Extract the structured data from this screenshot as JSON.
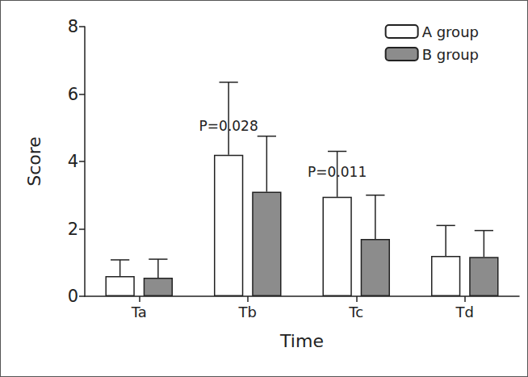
{
  "chart_data": {
    "type": "bar",
    "x_label": "Time",
    "y_label": "Score",
    "categories": [
      "Ta",
      "Tb",
      "Tc",
      "Td"
    ],
    "series": [
      {
        "name": "A group",
        "color": "#ffffff",
        "values": [
          0.6,
          4.2,
          2.95,
          1.2
        ],
        "errors": [
          0.48,
          2.15,
          1.35,
          0.9
        ]
      },
      {
        "name": "B group",
        "color": "#8c8c8c",
        "values": [
          0.55,
          3.1,
          1.7,
          1.17
        ],
        "errors": [
          0.55,
          1.65,
          1.3,
          0.78
        ]
      }
    ],
    "ylim": [
      0,
      8
    ],
    "yticks": [
      0,
      2,
      4,
      6,
      8
    ],
    "grid": false,
    "legend": "top-right",
    "annotations": [
      {
        "text": "P=0.028",
        "x": "Tb",
        "y": 5.05
      },
      {
        "text": "P=0.011",
        "x": "Tc",
        "y": 3.7
      }
    ]
  }
}
